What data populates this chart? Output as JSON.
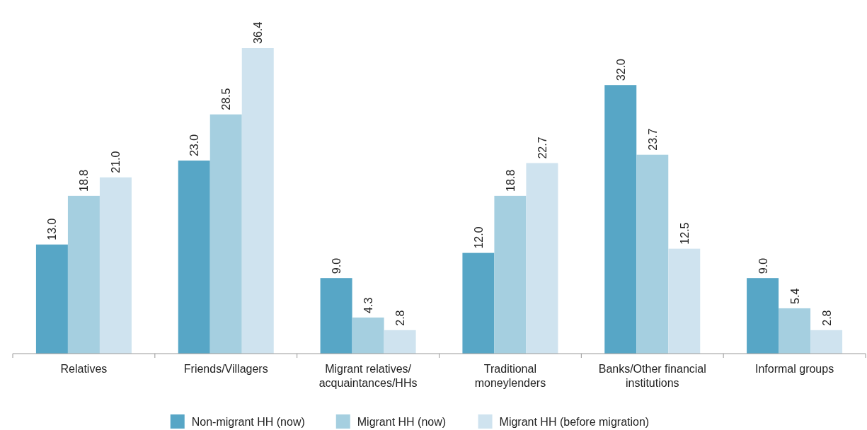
{
  "chart_data": {
    "type": "bar",
    "categories": [
      "Relatives",
      "Friends/Villagers",
      "Migrant relatives/ acquaintances/HHs",
      "Traditional moneylenders",
      "Banks/Other financial institutions",
      "Informal groups"
    ],
    "series": [
      {
        "name": "Non-migrant HH (now)",
        "color": "#57a6c6",
        "values": [
          13.0,
          23.0,
          9.0,
          12.0,
          32.0,
          9.0
        ],
        "value_labels": [
          "13.0",
          "23.0",
          "9.0",
          "12.0",
          "32.0",
          "9.0"
        ]
      },
      {
        "name": "Migrant HH (now)",
        "color": "#a5cfe0",
        "values": [
          18.8,
          28.5,
          4.3,
          18.8,
          23.7,
          5.4
        ],
        "value_labels": [
          "18.8",
          "28.5",
          "4.3",
          "18.8",
          "23.7",
          "5.4"
        ]
      },
      {
        "name": "Migrant HH (before migration)",
        "color": "#cfe3ef",
        "values": [
          21.0,
          36.4,
          2.8,
          22.7,
          12.5,
          2.8
        ],
        "value_labels": [
          "21.0",
          "36.4",
          "2.8",
          "22.7",
          "12.5",
          "2.8"
        ]
      }
    ],
    "legend": "bottom"
  }
}
